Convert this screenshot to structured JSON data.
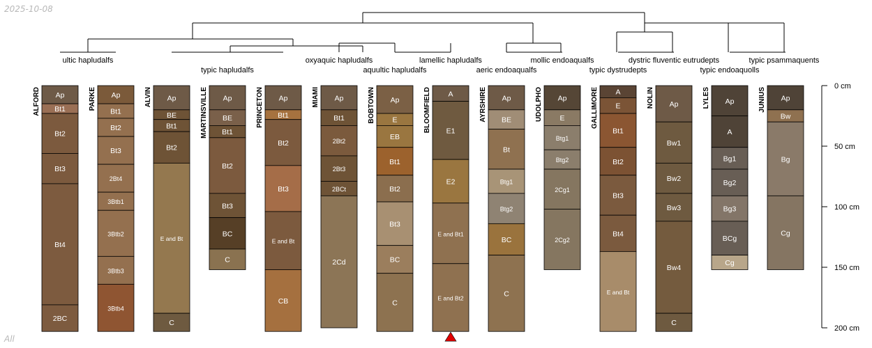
{
  "date_stamp": "2025-10-08",
  "footer_label": "All",
  "depth_axis": {
    "unit": "cm",
    "ticks": [
      0,
      50,
      100,
      150,
      200
    ],
    "labels": [
      "0 cm",
      "50 cm",
      "100 cm",
      "150 cm",
      "200 cm"
    ]
  },
  "marker_profile": "BLOOMFIELD",
  "taxa_labels": [
    "ultic hapludalfs",
    "typic hapludalfs",
    "oxyaquic hapludalfs",
    "aquultic hapludalfs",
    "lamellic hapludalfs",
    "aeric endoaqualfs",
    "mollic endoaqualfs",
    "typic dystrudepts",
    "dystric fluventic eutrudepts",
    "typic endoaquolls",
    "typic psammaquents"
  ],
  "profiles": [
    {
      "name": "ALFORD",
      "horizons": [
        {
          "name": "Ap",
          "top": 0,
          "bottom": 15,
          "color": "#6e5a47"
        },
        {
          "name": "Bt1",
          "top": 15,
          "bottom": 23,
          "color": "#9a6f55"
        },
        {
          "name": "Bt2",
          "top": 23,
          "bottom": 56,
          "color": "#7c5a3e"
        },
        {
          "name": "Bt3",
          "top": 56,
          "bottom": 81,
          "color": "#7c5a3e"
        },
        {
          "name": "Bt4",
          "top": 81,
          "bottom": 181,
          "color": "#7d5b3f"
        },
        {
          "name": "2BC",
          "top": 181,
          "bottom": 203,
          "color": "#7d5b3f"
        }
      ]
    },
    {
      "name": "PARKE",
      "horizons": [
        {
          "name": "Ap",
          "top": 0,
          "bottom": 15,
          "color": "#7b5a3a"
        },
        {
          "name": "Bt1",
          "top": 15,
          "bottom": 27,
          "color": "#94704f"
        },
        {
          "name": "Bt2",
          "top": 27,
          "bottom": 42,
          "color": "#94704f"
        },
        {
          "name": "Bt3",
          "top": 42,
          "bottom": 65,
          "color": "#94704f"
        },
        {
          "name": "2Bt4",
          "top": 65,
          "bottom": 88,
          "color": "#94704f"
        },
        {
          "name": "3Btb1",
          "top": 88,
          "bottom": 103,
          "color": "#94704f"
        },
        {
          "name": "3Btb2",
          "top": 103,
          "bottom": 141,
          "color": "#94704f"
        },
        {
          "name": "3Btb3",
          "top": 141,
          "bottom": 164,
          "color": "#94704f"
        },
        {
          "name": "3Btb4",
          "top": 164,
          "bottom": 203,
          "color": "#8f5532"
        }
      ]
    },
    {
      "name": "ALVIN",
      "horizons": [
        {
          "name": "Ap",
          "top": 0,
          "bottom": 20,
          "color": "#6e5a47"
        },
        {
          "name": "BE",
          "top": 20,
          "bottom": 28,
          "color": "#6e5336"
        },
        {
          "name": "Bt1",
          "top": 28,
          "bottom": 38,
          "color": "#6e5336"
        },
        {
          "name": "Bt2",
          "top": 38,
          "bottom": 64,
          "color": "#6e5336"
        },
        {
          "name": "E and Bt",
          "top": 64,
          "bottom": 188,
          "color": "#94784f"
        },
        {
          "name": "C",
          "top": 188,
          "bottom": 203,
          "color": "#6e5a40"
        }
      ]
    },
    {
      "name": "MARTINSVILLE",
      "horizons": [
        {
          "name": "Ap",
          "top": 0,
          "bottom": 20,
          "color": "#6e5a47"
        },
        {
          "name": "BE",
          "top": 20,
          "bottom": 33,
          "color": "#7a604a"
        },
        {
          "name": "Bt1",
          "top": 33,
          "bottom": 43,
          "color": "#6e5336"
        },
        {
          "name": "Bt2",
          "top": 43,
          "bottom": 89,
          "color": "#7c5a3e"
        },
        {
          "name": "Bt3",
          "top": 89,
          "bottom": 109,
          "color": "#6e5336"
        },
        {
          "name": "BC",
          "top": 109,
          "bottom": 135,
          "color": "#563f26"
        },
        {
          "name": "C",
          "top": 135,
          "bottom": 152,
          "color": "#8a7250"
        }
      ]
    },
    {
      "name": "PRINCETON",
      "horizons": [
        {
          "name": "Ap",
          "top": 0,
          "bottom": 20,
          "color": "#6e5a47"
        },
        {
          "name": "Bt1",
          "top": 20,
          "bottom": 28,
          "color": "#a6723f"
        },
        {
          "name": "Bt2",
          "top": 28,
          "bottom": 66,
          "color": "#7c5a3e"
        },
        {
          "name": "Bt3",
          "top": 66,
          "bottom": 104,
          "color": "#a56d48"
        },
        {
          "name": "E and Bt",
          "top": 104,
          "bottom": 152,
          "color": "#7c5a3e"
        },
        {
          "name": "CB",
          "top": 152,
          "bottom": 203,
          "color": "#a5703f"
        }
      ]
    },
    {
      "name": "MIAMI",
      "horizons": [
        {
          "name": "Ap",
          "top": 0,
          "bottom": 20,
          "color": "#6e5a47"
        },
        {
          "name": "Bt1",
          "top": 20,
          "bottom": 33,
          "color": "#6e5336"
        },
        {
          "name": "2Bt2",
          "top": 33,
          "bottom": 58,
          "color": "#7b5a3d"
        },
        {
          "name": "2Bt3",
          "top": 58,
          "bottom": 79,
          "color": "#6e5336"
        },
        {
          "name": "2BCt",
          "top": 79,
          "bottom": 91,
          "color": "#6e5336"
        },
        {
          "name": "2Cd",
          "top": 91,
          "bottom": 200,
          "color": "#8c7556"
        }
      ]
    },
    {
      "name": "BOBTOWN",
      "horizons": [
        {
          "name": "Ap",
          "top": 0,
          "bottom": 23,
          "color": "#7b6045"
        },
        {
          "name": "E",
          "top": 23,
          "bottom": 33,
          "color": "#9a7640"
        },
        {
          "name": "EB",
          "top": 33,
          "bottom": 51,
          "color": "#9a7640"
        },
        {
          "name": "Bt1",
          "top": 51,
          "bottom": 74,
          "color": "#9c622d"
        },
        {
          "name": "Bt2",
          "top": 74,
          "bottom": 96,
          "color": "#8b6e4e"
        },
        {
          "name": "Bt3",
          "top": 96,
          "bottom": 132,
          "color": "#a89072"
        },
        {
          "name": "BC",
          "top": 132,
          "bottom": 155,
          "color": "#9b7e5d"
        },
        {
          "name": "C",
          "top": 155,
          "bottom": 203,
          "color": "#8d7250"
        }
      ]
    },
    {
      "name": "BLOOMFIELD",
      "horizons": [
        {
          "name": "A",
          "top": 0,
          "bottom": 13,
          "color": "#6e5a47"
        },
        {
          "name": "E1",
          "top": 13,
          "bottom": 61,
          "color": "#6f5a40"
        },
        {
          "name": "E2",
          "top": 61,
          "bottom": 97,
          "color": "#9a7640"
        },
        {
          "name": "E and Bt1",
          "top": 97,
          "bottom": 147,
          "color": "#8f7150"
        },
        {
          "name": "E and Bt2",
          "top": 147,
          "bottom": 203,
          "color": "#8f7150"
        }
      ]
    },
    {
      "name": "AYRSHIRE",
      "horizons": [
        {
          "name": "Ap",
          "top": 0,
          "bottom": 20,
          "color": "#6e5a47"
        },
        {
          "name": "BE",
          "top": 20,
          "bottom": 36,
          "color": "#a08d76"
        },
        {
          "name": "Bt",
          "top": 36,
          "bottom": 69,
          "color": "#8f7150"
        },
        {
          "name": "Btg1",
          "top": 69,
          "bottom": 89,
          "color": "#a89477"
        },
        {
          "name": "Btg2",
          "top": 89,
          "bottom": 114,
          "color": "#8f8373"
        },
        {
          "name": "BC",
          "top": 114,
          "bottom": 140,
          "color": "#9a733d"
        },
        {
          "name": "C",
          "top": 140,
          "bottom": 203,
          "color": "#8e7250"
        }
      ]
    },
    {
      "name": "UDOLPHO",
      "horizons": [
        {
          "name": "Ap",
          "top": 0,
          "bottom": 20,
          "color": "#554636"
        },
        {
          "name": "E",
          "top": 20,
          "bottom": 33,
          "color": "#8a7a64"
        },
        {
          "name": "Btg1",
          "top": 33,
          "bottom": 53,
          "color": "#8b7e6c"
        },
        {
          "name": "Btg2",
          "top": 53,
          "bottom": 69,
          "color": "#8b7e6c"
        },
        {
          "name": "2Cg1",
          "top": 69,
          "bottom": 102,
          "color": "#857660"
        },
        {
          "name": "2Cg2",
          "top": 102,
          "bottom": 152,
          "color": "#857660"
        }
      ]
    },
    {
      "name": "GALLIMORE",
      "horizons": [
        {
          "name": "A",
          "top": 0,
          "bottom": 10,
          "color": "#5a4434"
        },
        {
          "name": "E",
          "top": 10,
          "bottom": 23,
          "color": "#7b5436"
        },
        {
          "name": "Bt1",
          "top": 23,
          "bottom": 51,
          "color": "#8b5632"
        },
        {
          "name": "Bt2",
          "top": 51,
          "bottom": 74,
          "color": "#7c5233"
        },
        {
          "name": "Bt3",
          "top": 74,
          "bottom": 107,
          "color": "#7b5a3e"
        },
        {
          "name": "Bt4",
          "top": 107,
          "bottom": 137,
          "color": "#7b5a3e"
        },
        {
          "name": "E and Bt",
          "top": 137,
          "bottom": 203,
          "color": "#a88c6a"
        }
      ]
    },
    {
      "name": "NOLIN",
      "horizons": [
        {
          "name": "Ap",
          "top": 0,
          "bottom": 30,
          "color": "#6e5a47"
        },
        {
          "name": "Bw1",
          "top": 30,
          "bottom": 64,
          "color": "#6e5a40"
        },
        {
          "name": "Bw2",
          "top": 64,
          "bottom": 89,
          "color": "#6e5a40"
        },
        {
          "name": "Bw3",
          "top": 89,
          "bottom": 112,
          "color": "#6e5a40"
        },
        {
          "name": "Bw4",
          "top": 112,
          "bottom": 188,
          "color": "#745b3e"
        },
        {
          "name": "C",
          "top": 188,
          "bottom": 203,
          "color": "#6e5a40"
        }
      ]
    },
    {
      "name": "LYLES",
      "horizons": [
        {
          "name": "Ap",
          "top": 0,
          "bottom": 25,
          "color": "#4f4337"
        },
        {
          "name": "A",
          "top": 25,
          "bottom": 51,
          "color": "#4f4337"
        },
        {
          "name": "Bg1",
          "top": 51,
          "bottom": 69,
          "color": "#685e55"
        },
        {
          "name": "Bg2",
          "top": 69,
          "bottom": 91,
          "color": "#685e55"
        },
        {
          "name": "Bg3",
          "top": 91,
          "bottom": 112,
          "color": "#837568"
        },
        {
          "name": "BCg",
          "top": 112,
          "bottom": 140,
          "color": "#685e55"
        },
        {
          "name": "Cg",
          "top": 140,
          "bottom": 152,
          "color": "#b8a68a"
        }
      ]
    },
    {
      "name": "JUNIUS",
      "horizons": [
        {
          "name": "Ap",
          "top": 0,
          "bottom": 20,
          "color": "#4f4337"
        },
        {
          "name": "Bw",
          "top": 20,
          "bottom": 30,
          "color": "#8f7150"
        },
        {
          "name": "Bg",
          "top": 30,
          "bottom": 91,
          "color": "#8a7a69"
        },
        {
          "name": "Cg",
          "top": 91,
          "bottom": 152,
          "color": "#857562"
        }
      ]
    }
  ]
}
